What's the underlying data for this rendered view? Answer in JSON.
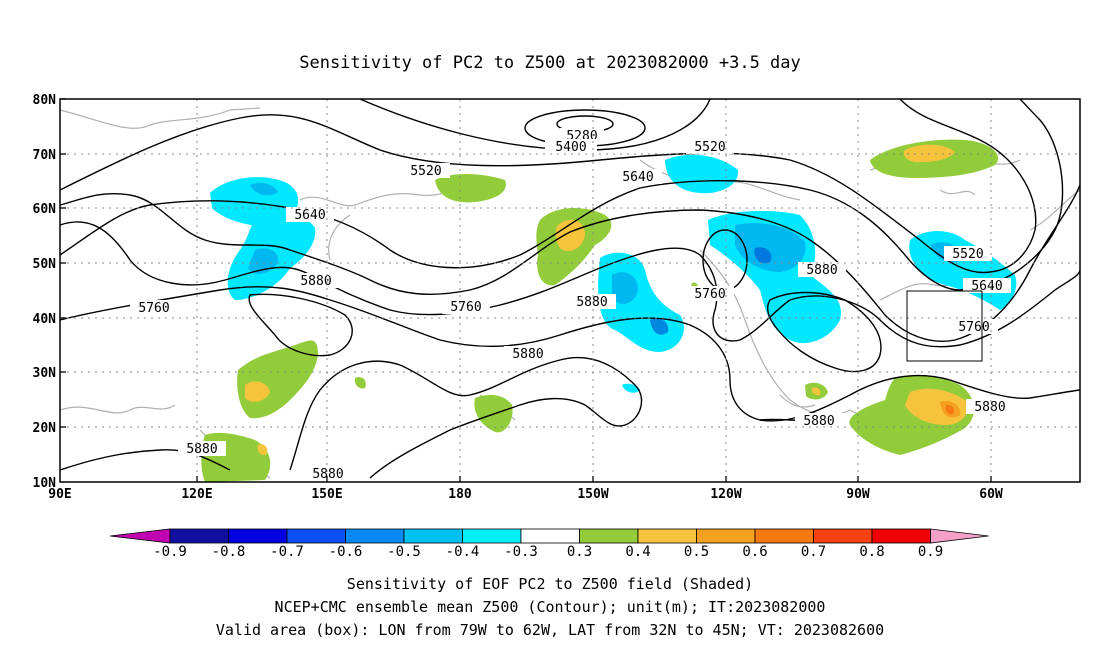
{
  "title": "Sensitivity of PC2 to Z500 at 2023082000 +3.5 day",
  "map": {
    "lat_labels": [
      "80N",
      "70N",
      "60N",
      "50N",
      "40N",
      "30N",
      "20N",
      "10N"
    ],
    "lon_labels": [
      "90E",
      "120E",
      "150E",
      "180",
      "150W",
      "120W",
      "90W",
      "60W"
    ],
    "contour_labels": [
      "5280",
      "5400",
      "5520",
      "5520",
      "5640",
      "5640",
      "5640",
      "5520",
      "5760",
      "5760",
      "5760",
      "5760",
      "5880",
      "5880",
      "5880",
      "5880",
      "5880",
      "5880",
      "5880",
      "5880"
    ],
    "valid_box": {
      "lon_from": "79W",
      "lon_to": "62W",
      "lat_from": "32N",
      "lat_to": "45N"
    },
    "colors": {
      "neg_light": "#00e8ff",
      "neg_mid": "#00c0f0",
      "neg_dark": "#0090e8",
      "neg_deep": "#0050d8",
      "pos_green": "#92cc3a",
      "pos_yellow": "#f5c43c",
      "pos_orange": "#f5a020",
      "pos_red": "#f05010"
    }
  },
  "colorbar": {
    "ticks": [
      "-0.9",
      "-0.8",
      "-0.7",
      "-0.6",
      "-0.5",
      "-0.4",
      "-0.3",
      "0.3",
      "0.4",
      "0.5",
      "0.6",
      "0.7",
      "0.8",
      "0.9"
    ],
    "colors": [
      "#c000b0",
      "#1010a0",
      "#0000e0",
      "#0850f0",
      "#0888f0",
      "#00c0f0",
      "#00f0ff",
      "#ffffff",
      "#92cc3a",
      "#f5c43c",
      "#f5a020",
      "#f57810",
      "#f54010",
      "#f00000",
      "#f5a0c8"
    ]
  },
  "footer": {
    "line1": "Sensitivity of EOF PC2 to Z500 field (Shaded)",
    "line2": "NCEP+CMC ensemble mean Z500 (Contour); unit(m); IT:2023082000",
    "line3": "Valid area (box): LON from 79W to 62W, LAT from 32N to 45N; VT: 2023082600"
  }
}
